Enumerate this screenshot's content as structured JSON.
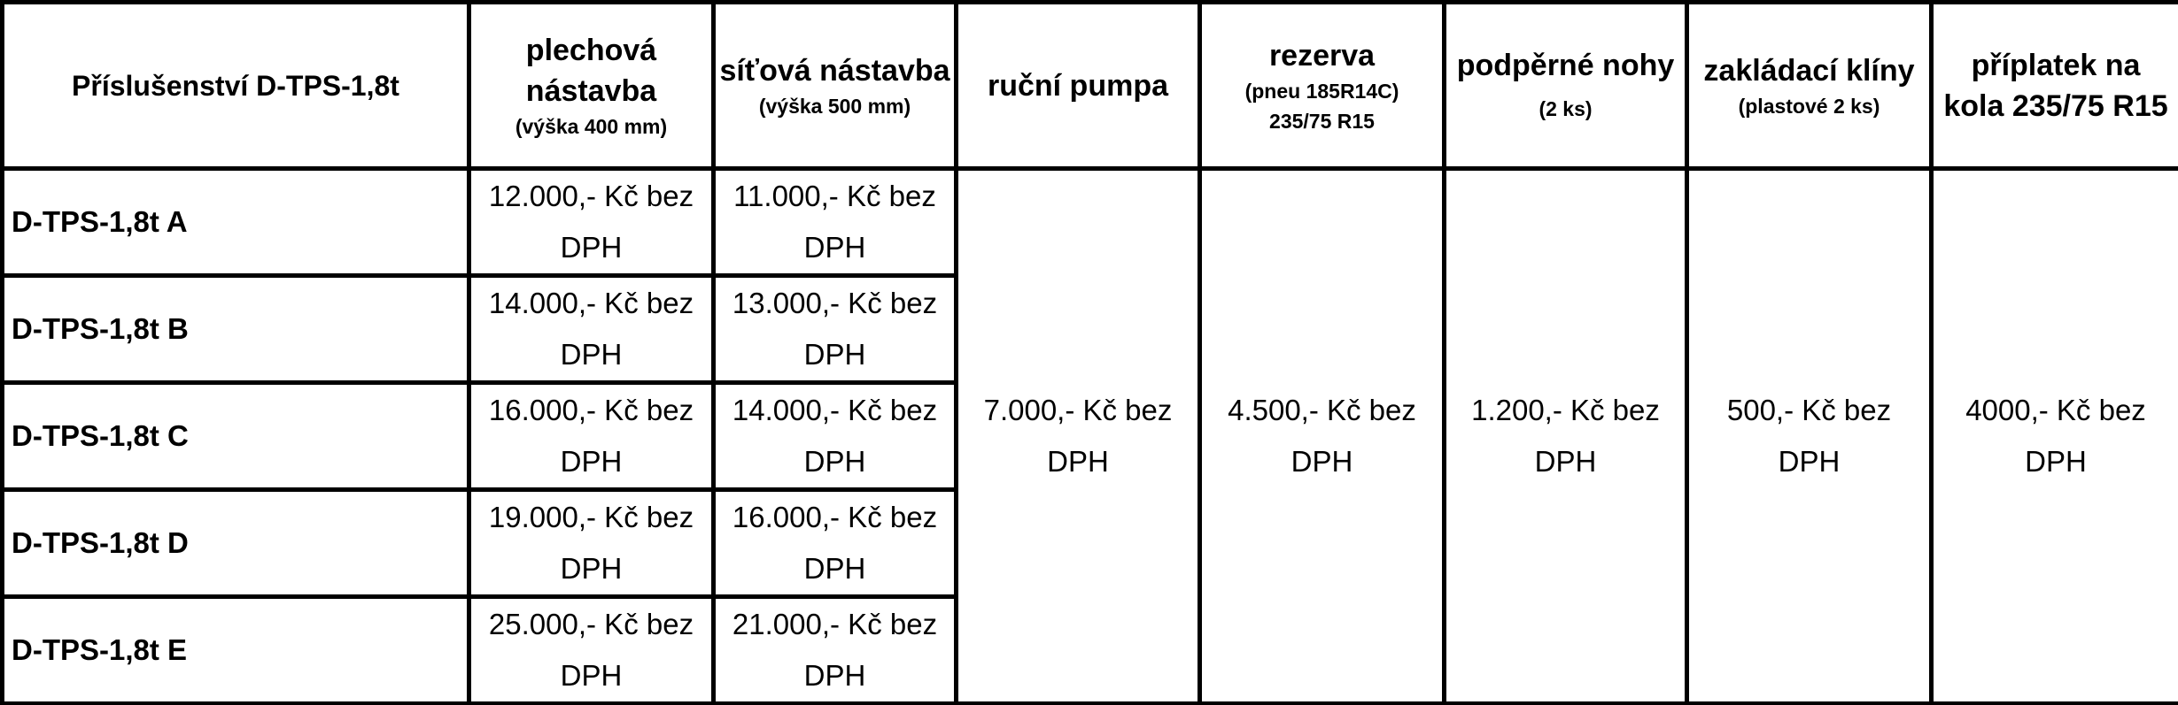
{
  "table": {
    "header": [
      {
        "text": "Příslušenství D-TPS-1,8t"
      },
      {
        "text": "plechová nástavba",
        "notes": [
          "(výška 400 mm)"
        ]
      },
      {
        "text": "síťová nástavba",
        "notes": [
          "(výška 500 mm)"
        ]
      },
      {
        "text": "ruční pumpa"
      },
      {
        "text": "rezerva",
        "notes": [
          "(pneu 185R14C)",
          "235/75 R15"
        ]
      },
      {
        "text": "podpěrné nohy",
        "notes": [
          "(2 ks)"
        ]
      },
      {
        "text": "zakládací klíny",
        "notes": [
          "(plastové 2 ks)"
        ]
      },
      {
        "text": "příplatek na kola 235/75 R15"
      }
    ],
    "rows": [
      [
        "D-TPS-1,8t A",
        "12.000,- Kč bez DPH",
        "11.000,- Kč bez DPH"
      ],
      [
        "D-TPS-1,8t B",
        "14.000,- Kč bez DPH",
        "13.000,- Kč bez DPH"
      ],
      [
        "D-TPS-1,8t C",
        "16.000,- Kč bez DPH",
        "14.000,- Kč bez DPH"
      ],
      [
        "D-TPS-1,8t D",
        "19.000,- Kč bez DPH",
        "16.000,- Kč bez DPH"
      ],
      [
        "D-TPS-1,8t E",
        "25.000,- Kč bez DPH",
        "21.000,- Kč bez DPH"
      ]
    ],
    "shared": [
      "7.000,- Kč bez DPH",
      "4.500,- Kč bez DPH",
      "1.200,- Kč bez DPH",
      "500,- Kč bez DPH",
      "4000,- Kč bez DPH"
    ]
  }
}
